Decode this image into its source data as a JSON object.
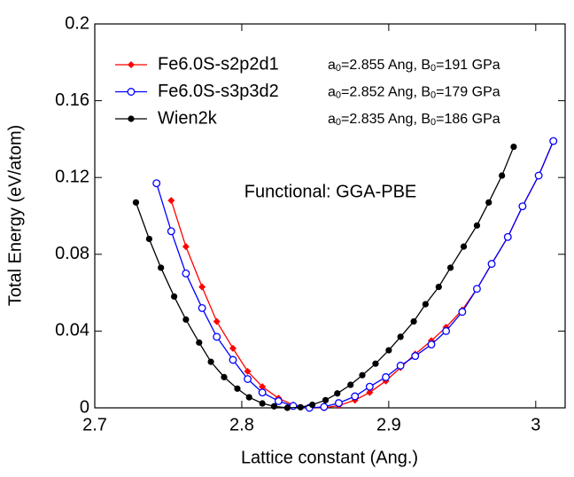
{
  "chart_data": {
    "type": "line",
    "xlabel": "Lattice constant (Ang.)",
    "ylabel": "Total Energy (eV/atom)",
    "annotation": "Functional: GGA-PBE",
    "xlim": [
      2.7,
      3.02
    ],
    "ylim": [
      0,
      0.2
    ],
    "xticks": [
      2.7,
      2.8,
      2.9,
      3
    ],
    "yticks": [
      0,
      0.04,
      0.08,
      0.12,
      0.16,
      0.2
    ],
    "legend": "upper left",
    "series": [
      {
        "name": "Fe6.0S-s2p2d1",
        "color": "#ff0000",
        "marker": "diamond",
        "fit": [
          "a",
          "0",
          "=2.855 Ang, B",
          "0",
          "=191 GPa"
        ],
        "x": [
          2.752,
          2.762,
          2.773,
          2.783,
          2.794,
          2.804,
          2.814,
          2.825,
          2.835,
          2.846,
          2.856,
          2.866,
          2.877,
          2.887,
          2.898,
          2.908,
          2.918,
          2.929,
          2.939,
          2.95,
          2.96,
          2.97,
          2.981,
          2.991,
          3.002,
          3.012
        ],
        "values": [
          0.108,
          0.084,
          0.063,
          0.045,
          0.031,
          0.019,
          0.011,
          0.005,
          0.0015,
          0.0003,
          0.0,
          0.0012,
          0.004,
          0.008,
          0.014,
          0.021,
          0.028,
          0.035,
          0.042,
          0.051,
          0.062,
          0.075,
          0.089,
          0.105,
          0.121,
          0.139
        ]
      },
      {
        "name": "Fe6.0S-s3p3d2",
        "color": "#0000ff",
        "marker": "open-circle",
        "fit": [
          "a",
          "0",
          "=2.852 Ang, B",
          "0",
          "=179 GPa"
        ],
        "x": [
          2.742,
          2.752,
          2.762,
          2.773,
          2.783,
          2.794,
          2.804,
          2.814,
          2.825,
          2.835,
          2.846,
          2.856,
          2.866,
          2.877,
          2.887,
          2.898,
          2.908,
          2.918,
          2.929,
          2.939,
          2.95,
          2.96,
          2.97,
          2.981,
          2.991,
          3.002,
          3.012
        ],
        "values": [
          0.117,
          0.092,
          0.07,
          0.052,
          0.037,
          0.025,
          0.015,
          0.008,
          0.0035,
          0.001,
          0.0,
          0.0005,
          0.0025,
          0.006,
          0.011,
          0.016,
          0.022,
          0.027,
          0.033,
          0.04,
          0.05,
          0.062,
          0.075,
          0.089,
          0.105,
          0.121,
          0.139
        ]
      },
      {
        "name": "Wien2k",
        "color": "#000000",
        "marker": "circle",
        "fit": [
          "a",
          "0",
          "=2.835 Ang, B",
          "0",
          "=186 GPa"
        ],
        "x": [
          2.728,
          2.737,
          2.745,
          2.754,
          2.762,
          2.771,
          2.779,
          2.788,
          2.797,
          2.805,
          2.814,
          2.822,
          2.831,
          2.84,
          2.848,
          2.857,
          2.865,
          2.874,
          2.882,
          2.891,
          2.9,
          2.908,
          2.917,
          2.925,
          2.934,
          2.942,
          2.951,
          2.96,
          2.968,
          2.977,
          2.985
        ],
        "values": [
          0.107,
          0.088,
          0.073,
          0.058,
          0.046,
          0.034,
          0.024,
          0.016,
          0.01,
          0.0055,
          0.0023,
          0.0008,
          0.0,
          0.0003,
          0.0016,
          0.004,
          0.0075,
          0.012,
          0.017,
          0.023,
          0.03,
          0.037,
          0.045,
          0.054,
          0.063,
          0.073,
          0.084,
          0.095,
          0.107,
          0.121,
          0.136
        ]
      }
    ]
  }
}
